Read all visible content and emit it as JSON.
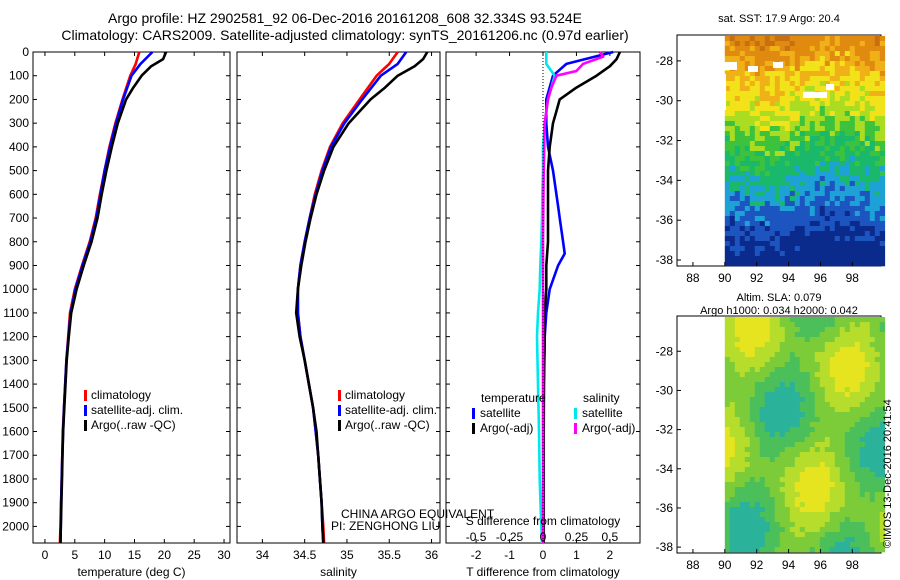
{
  "header": {
    "line1": "Argo profile: HZ 2902581_92 06-Dec-2016 20161208_608 32.334S 93.524E",
    "line2": "Climatology: CARS2009. Satellite-adjusted climatology: synTS_20161206.nc (0.97d earlier)"
  },
  "colors": {
    "climatology": "#ff0000",
    "satellite": "#0000ff",
    "argo": "#000000",
    "satellite_s": "#00e6ee",
    "argo_s": "#ff00ff"
  },
  "footer": {
    "credit1": "CHINA ARGO EQUIVALENT",
    "credit2": "PI: ZENGHONG LIU",
    "stamp": "©IMOS 13-Dec-2016 20:41:54"
  },
  "maps": {
    "sst_title": "sat. SST: 17.9 Argo: 20.4",
    "sla_title1": "Altim. SLA: 0.079",
    "sla_title2": "Argo h1000: 0.034 h2000: 0.042"
  },
  "chart_data": [
    {
      "type": "line",
      "xlabel": "temperature (deg C)",
      "xlim": [
        -2,
        31
      ],
      "ylim": [
        2070,
        0
      ],
      "xticks": [
        "0",
        "5",
        "10",
        "15",
        "20",
        "25",
        "30"
      ],
      "yticks": [
        "0",
        "100",
        "200",
        "300",
        "400",
        "500",
        "600",
        "700",
        "800",
        "900",
        "1000",
        "1100",
        "1200",
        "1300",
        "1400",
        "1500",
        "1600",
        "1700",
        "1800",
        "1900",
        "2000"
      ],
      "legend": [
        "climatology",
        "satellite-adj. clim.",
        "Argo(..raw -QC)"
      ],
      "series": [
        {
          "name": "climatology",
          "color": "#ff0000",
          "depth": [
            0,
            50,
            100,
            200,
            300,
            400,
            500,
            600,
            700,
            800,
            900,
            1000,
            1100,
            1200,
            1300,
            1400,
            1500,
            1600,
            1700,
            1800,
            1900,
            2000,
            2070
          ],
          "values": [
            15.8,
            15.2,
            14.3,
            13.0,
            11.8,
            10.8,
            10.0,
            9.2,
            8.5,
            7.5,
            6.2,
            5.0,
            4.2,
            3.9,
            3.6,
            3.4,
            3.2,
            3.0,
            2.9,
            2.8,
            2.7,
            2.6,
            2.5
          ]
        },
        {
          "name": "satellite-adj. clim.",
          "color": "#0000ff",
          "depth": [
            0,
            50,
            100,
            200,
            300,
            400,
            500,
            600,
            700,
            800,
            900,
            1000,
            1100,
            1200,
            1300,
            1400,
            1500,
            1600,
            1700,
            1800,
            1900,
            2000,
            2070
          ],
          "values": [
            18.0,
            16.0,
            14.5,
            13.1,
            11.9,
            10.9,
            10.0,
            9.3,
            8.6,
            7.6,
            6.3,
            5.1,
            4.3,
            3.95,
            3.6,
            3.4,
            3.2,
            3.05,
            2.9,
            2.8,
            2.7,
            2.65,
            2.6
          ]
        },
        {
          "name": "Argo(..raw -QC)",
          "color": "#000000",
          "depth": [
            0,
            30,
            60,
            100,
            150,
            200,
            300,
            400,
            500,
            600,
            700,
            800,
            900,
            1000,
            1100,
            1200,
            1300,
            1400,
            1500,
            1600,
            1700,
            1800,
            1900,
            2000,
            2070
          ],
          "values": [
            20.3,
            19.8,
            17.8,
            16.2,
            14.8,
            13.6,
            12.2,
            11.2,
            10.3,
            9.5,
            8.8,
            7.8,
            6.5,
            5.3,
            4.4,
            4.0,
            3.65,
            3.45,
            3.25,
            3.05,
            2.95,
            2.85,
            2.75,
            2.65,
            2.6
          ]
        }
      ]
    },
    {
      "type": "line",
      "xlabel": "salinity",
      "xlim": [
        33.7,
        36.1
      ],
      "ylim": [
        2070,
        0
      ],
      "xticks": [
        "34",
        "34.5",
        "35",
        "35.5",
        "36"
      ],
      "legend": [
        "climatology",
        "satellite-adj. clim.",
        "Argo(..raw -QC)"
      ],
      "series": [
        {
          "name": "climatology",
          "color": "#ff0000",
          "depth": [
            0,
            50,
            100,
            200,
            300,
            400,
            500,
            600,
            700,
            800,
            900,
            1000,
            1100,
            1200,
            1300,
            1400,
            1500,
            1600,
            1700,
            1800,
            1900,
            2000,
            2070
          ],
          "values": [
            35.6,
            35.5,
            35.35,
            35.15,
            34.95,
            34.8,
            34.7,
            34.62,
            34.56,
            34.5,
            34.45,
            34.42,
            34.42,
            34.45,
            34.5,
            34.55,
            34.6,
            34.63,
            34.66,
            34.68,
            34.7,
            34.72,
            34.73
          ]
        },
        {
          "name": "satellite-adj. clim.",
          "color": "#0000ff",
          "depth": [
            0,
            50,
            100,
            200,
            300,
            400,
            500,
            600,
            700,
            800,
            900,
            1000,
            1100,
            1200,
            1300,
            1400,
            1500,
            1600,
            1700,
            1800,
            1900,
            2000,
            2070
          ],
          "values": [
            35.7,
            35.6,
            35.4,
            35.18,
            34.97,
            34.81,
            34.71,
            34.63,
            34.56,
            34.5,
            34.45,
            34.42,
            34.42,
            34.45,
            34.5,
            34.55,
            34.6,
            34.63,
            34.66,
            34.68,
            34.7,
            34.71,
            34.72
          ]
        },
        {
          "name": "Argo(..raw -QC)",
          "color": "#000000",
          "depth": [
            0,
            30,
            60,
            100,
            150,
            200,
            300,
            400,
            500,
            600,
            700,
            800,
            900,
            1000,
            1100,
            1200,
            1300,
            1400,
            1500,
            1600,
            1700,
            1800,
            1900,
            2000,
            2070
          ],
          "values": [
            35.95,
            35.9,
            35.8,
            35.6,
            35.45,
            35.28,
            35.02,
            34.84,
            34.73,
            34.64,
            34.57,
            34.51,
            34.46,
            34.42,
            34.4,
            34.44,
            34.5,
            34.55,
            34.6,
            34.64,
            34.66,
            34.68,
            34.7,
            34.71,
            34.72
          ]
        }
      ]
    },
    {
      "type": "line",
      "xlabel": "T difference from climatology",
      "xlabel2": "S difference from climatology",
      "xlim": [
        -2.9,
        2.9
      ],
      "ylim": [
        2070,
        0
      ],
      "xticks": [
        "-2",
        "-1",
        "0",
        "1",
        "2"
      ],
      "xticks_top": [
        "-0.5",
        "-0.25",
        "0",
        "0.25",
        "0.5"
      ],
      "legend_title_t": "temperature",
      "legend_title_s": "salinity",
      "legend": [
        "satellite",
        "Argo(-adj)",
        "satellite",
        "Argo(-adj)"
      ],
      "series": [
        {
          "name": "temperature satellite",
          "color": "#0000ff",
          "depth": [
            0,
            50,
            100,
            200,
            300,
            400,
            500,
            600,
            650,
            700,
            750,
            800,
            850,
            900,
            1000,
            1100,
            1200,
            1400,
            1600,
            1800,
            2000,
            2070
          ],
          "values": [
            2.1,
            0.7,
            0.3,
            0.1,
            0.1,
            0.15,
            0.3,
            0.4,
            0.45,
            0.5,
            0.55,
            0.6,
            0.65,
            0.45,
            0.2,
            0.1,
            0.05,
            0.02,
            0.02,
            0.01,
            0.01,
            0.01
          ]
        },
        {
          "name": "temperature Argo(-adj)",
          "color": "#000000",
          "depth": [
            0,
            30,
            60,
            100,
            150,
            200,
            250,
            300,
            400,
            500,
            600,
            700,
            800,
            900,
            1000,
            1100,
            1200,
            1400,
            1600,
            1800,
            2000,
            2070
          ],
          "values": [
            2.3,
            2.2,
            2.0,
            1.6,
            1.0,
            0.5,
            0.4,
            0.3,
            0.2,
            0.15,
            0.15,
            0.15,
            0.15,
            0.1,
            0.1,
            0.05,
            0.05,
            0.03,
            0.02,
            0.02,
            0.02,
            0.02
          ]
        },
        {
          "name": "salinity satellite",
          "color": "#00e6ee",
          "depth": [
            0,
            50,
            100,
            200,
            300,
            400,
            500,
            600,
            700,
            800,
            900,
            1000,
            1100,
            1200,
            1400,
            1600,
            1800,
            2000,
            2070
          ],
          "values": [
            0.1,
            0.1,
            0.35,
            0.15,
            0.05,
            0.0,
            0.0,
            -0.02,
            -0.03,
            -0.05,
            -0.08,
            -0.1,
            -0.15,
            -0.18,
            -0.15,
            -0.12,
            -0.1,
            -0.05,
            -0.03
          ]
        },
        {
          "name": "salinity Argo(-adj)",
          "color": "#ff00ff",
          "depth": [
            0,
            20,
            50,
            80,
            100,
            150,
            200,
            300,
            500,
            800,
            1000,
            1200,
            1500,
            2000,
            2070
          ],
          "values": [
            1.7,
            1.8,
            1.2,
            1.0,
            0.4,
            0.25,
            0.15,
            0.05,
            0.02,
            0.0,
            0.0,
            0.0,
            0.0,
            0.0,
            0.0
          ]
        }
      ]
    },
    {
      "type": "heatmap",
      "title": "sat. SST: 17.9 Argo: 20.4",
      "xlim": [
        87,
        99.8
      ],
      "ylim": [
        -38.3,
        -26.7
      ],
      "xticks": [
        "88",
        "90",
        "92",
        "94",
        "96",
        "98"
      ],
      "yticks": [
        "-28",
        "-30",
        "-32",
        "-34",
        "-36",
        "-38"
      ]
    },
    {
      "type": "heatmap",
      "title": "Altim. SLA: 0.079",
      "xlim": [
        87,
        99.8
      ],
      "ylim": [
        -38.3,
        -26.2
      ],
      "xticks": [
        "88",
        "90",
        "92",
        "94",
        "96",
        "98"
      ],
      "yticks": [
        "-28",
        "-30",
        "-32",
        "-34",
        "-36",
        "-38"
      ]
    }
  ]
}
